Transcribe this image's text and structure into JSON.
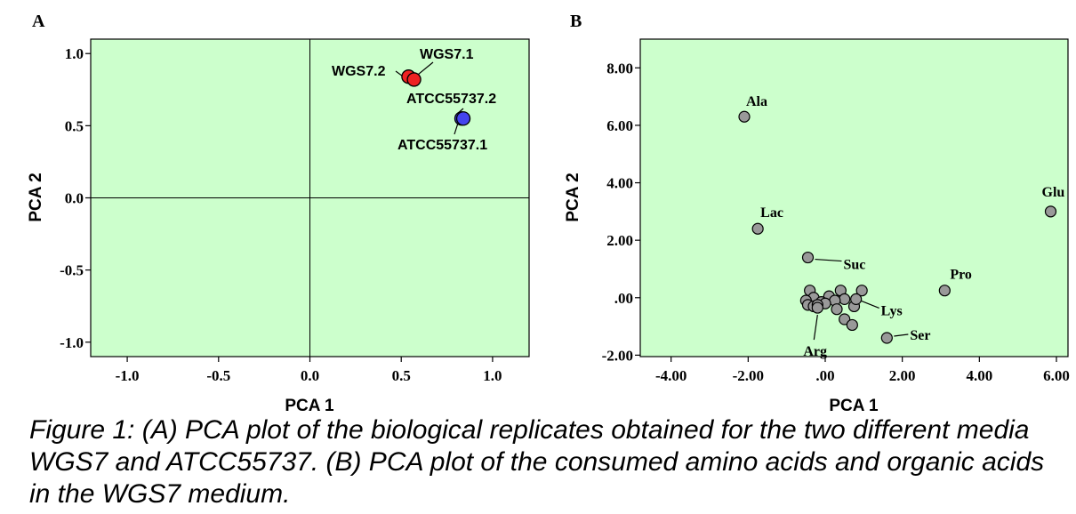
{
  "caption": "Figure 1: (A) PCA plot of the biological replicates obtained for the two different media WGS7 and ATCC55737. (B) PCA plot of the consumed amino acids and organic acids in the WGS7 medium.",
  "chart_data": [
    {
      "type": "scatter",
      "panel": "A",
      "xlabel": "PCA 1",
      "ylabel": "PCA 2",
      "xlim": [
        -1.2,
        1.2
      ],
      "ylim": [
        -1.1,
        1.1
      ],
      "xticks": [
        -1.0,
        -0.5,
        0.0,
        0.5,
        1.0
      ],
      "xtick_labels": [
        "-1.0",
        "-0.5",
        "0.0",
        "0.5",
        "1.0"
      ],
      "yticks": [
        1.0,
        0.5,
        0.0,
        -0.5,
        -1.0
      ],
      "ytick_labels": [
        "1.0",
        "0.5",
        "0.0",
        "-0.5",
        "-1.0"
      ],
      "background": "#ccffcc",
      "reference_lines": {
        "x": 0,
        "y": 0
      },
      "points": [
        {
          "label": "WGS7.2",
          "x": 0.54,
          "y": 0.84,
          "color": "#ee2222"
        },
        {
          "label": "WGS7.1",
          "x": 0.57,
          "y": 0.82,
          "color": "#ee2222"
        },
        {
          "label": "ATCC55737.2",
          "x": 0.83,
          "y": 0.55,
          "color": "#4444ee"
        },
        {
          "label": "ATCC55737.1",
          "x": 0.84,
          "y": 0.55,
          "color": "#4444ee"
        }
      ]
    },
    {
      "type": "scatter",
      "panel": "B",
      "xlabel": "PCA 1",
      "ylabel": "PCA 2",
      "xlim": [
        -4.8,
        6.3
      ],
      "ylim": [
        -2.05,
        9.0
      ],
      "xticks": [
        -4,
        -2,
        0,
        2,
        4,
        6
      ],
      "xtick_labels": [
        "-4.00",
        "-2.00",
        ".00",
        "2.00",
        "4.00",
        "6.00"
      ],
      "yticks": [
        8,
        6,
        4,
        2,
        0,
        -2
      ],
      "ytick_labels": [
        "8.00",
        "6.00",
        "4.00",
        "2.00",
        ".00",
        "-2.00"
      ],
      "background": "#ccffcc",
      "point_color": "#999999",
      "labeled_points": [
        {
          "label": "Ala",
          "x": -2.1,
          "y": 6.3
        },
        {
          "label": "Lac",
          "x": -1.75,
          "y": 2.4
        },
        {
          "label": "Glu",
          "x": 5.85,
          "y": 3.0
        },
        {
          "label": "Suc",
          "x": -0.45,
          "y": 1.4
        },
        {
          "label": "Pro",
          "x": 3.1,
          "y": 0.25
        },
        {
          "label": "Lys",
          "x": 0.8,
          "y": -0.05
        },
        {
          "label": "Arg",
          "x": -0.2,
          "y": -0.35
        },
        {
          "label": "Ser",
          "x": 1.6,
          "y": -1.4
        }
      ],
      "unlabeled_points": [
        {
          "x": -0.4,
          "y": 0.25
        },
        {
          "x": 0.4,
          "y": 0.25
        },
        {
          "x": 0.95,
          "y": 0.25
        },
        {
          "x": 0.1,
          "y": 0.05
        },
        {
          "x": -0.3,
          "y": 0.0
        },
        {
          "x": 0.5,
          "y": -0.05
        },
        {
          "x": -0.1,
          "y": -0.15
        },
        {
          "x": 0.25,
          "y": -0.1
        },
        {
          "x": -0.5,
          "y": -0.1
        },
        {
          "x": -0.45,
          "y": -0.25
        },
        {
          "x": -0.3,
          "y": -0.3
        },
        {
          "x": 0.0,
          "y": -0.2
        },
        {
          "x": 0.75,
          "y": -0.3
        },
        {
          "x": 0.3,
          "y": -0.4
        },
        {
          "x": 0.5,
          "y": -0.75
        },
        {
          "x": 0.7,
          "y": -0.95
        },
        {
          "x": -0.2,
          "y": -0.25
        }
      ]
    }
  ]
}
